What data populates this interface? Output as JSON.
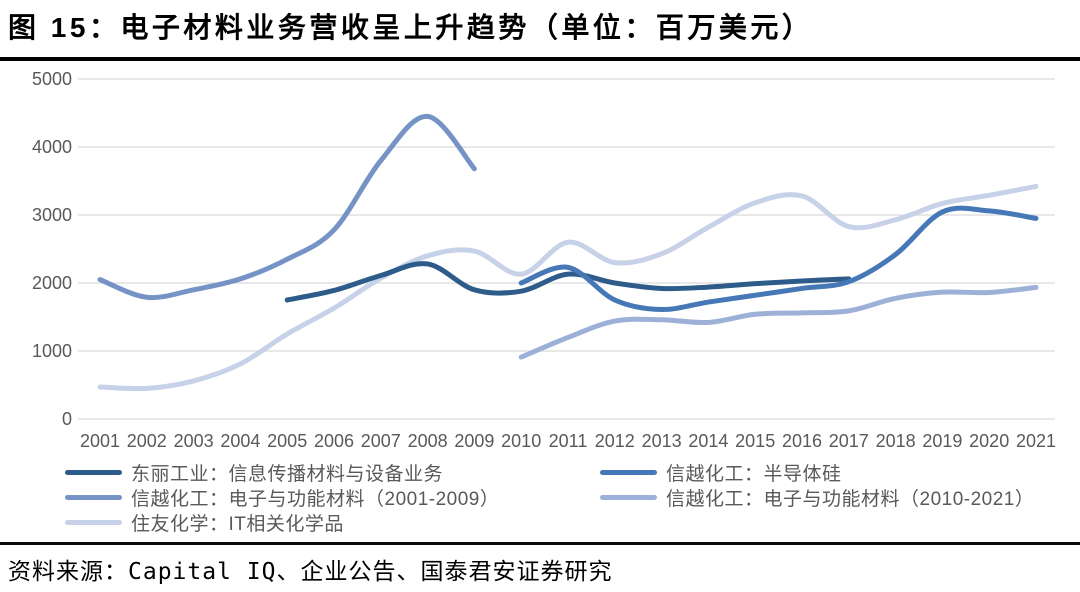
{
  "header": {
    "title": "图 15：电子材料业务营收呈上升趋势（单位：百万美元）"
  },
  "chart_data": {
    "type": "line",
    "title": "图 15：电子材料业务营收呈上升趋势（单位：百万美元）",
    "unit": "百万美元",
    "x": [
      2001,
      2002,
      2003,
      2004,
      2005,
      2006,
      2007,
      2008,
      2009,
      2010,
      2011,
      2012,
      2013,
      2014,
      2015,
      2016,
      2017,
      2018,
      2019,
      2020,
      2021
    ],
    "ylim": [
      0,
      5000
    ],
    "y_ticks": [
      0,
      1000,
      2000,
      3000,
      4000,
      5000
    ],
    "grid": "horizontal",
    "gridline_color": "#d9d9d9",
    "legend_position": "bottom",
    "series": [
      {
        "id": "sumitomo",
        "name": "住友化学：IT相关化学品",
        "color": "#c7d2e8",
        "start_year": 2001,
        "values": [
          470,
          450,
          560,
          810,
          1250,
          1630,
          2070,
          2400,
          2470,
          2130,
          2600,
          2300,
          2430,
          2820,
          3180,
          3280,
          2830,
          2930,
          3170,
          3290,
          3420
        ]
      },
      {
        "id": "shinetsu_em_0109",
        "name": "信越化工：电子与功能材料（2001-2009）",
        "color": "#7593c5",
        "start_year": 2001,
        "values": [
          2050,
          1790,
          1900,
          2060,
          2350,
          2780,
          3800,
          4450,
          3680
        ]
      },
      {
        "id": "shinetsu_em_1021",
        "name": "信越化工：电子与功能材料（2010-2021）",
        "color": "#9db1d8",
        "start_year": 2010,
        "values": [
          910,
          1200,
          1440,
          1460,
          1420,
          1540,
          1560,
          1590,
          1775,
          1865,
          1860,
          1935
        ]
      },
      {
        "id": "toray",
        "name": "东丽工业：信息传播材料与设备业务",
        "color": "#2e5c8a",
        "start_year": 2005,
        "values": [
          1750,
          1890,
          2110,
          2280,
          1900,
          1880,
          2130,
          2000,
          1920,
          1940,
          1990,
          2030,
          2060
        ]
      },
      {
        "id": "shinetsu_semi",
        "name": "信越化工：半导体硅",
        "color": "#4678b8",
        "start_year": 2010,
        "values": [
          2000,
          2230,
          1750,
          1610,
          1720,
          1820,
          1920,
          2020,
          2420,
          3045,
          3060,
          2950
        ]
      }
    ]
  },
  "legend": {
    "columns": [
      {
        "items": [
          "toray",
          "shinetsu_em_0109",
          "sumitomo"
        ]
      },
      {
        "items": [
          "shinetsu_semi",
          "shinetsu_em_1021"
        ]
      }
    ]
  },
  "source_note": {
    "text": "资料来源：Capital IQ、企业公告、国泰君安证券研究"
  }
}
